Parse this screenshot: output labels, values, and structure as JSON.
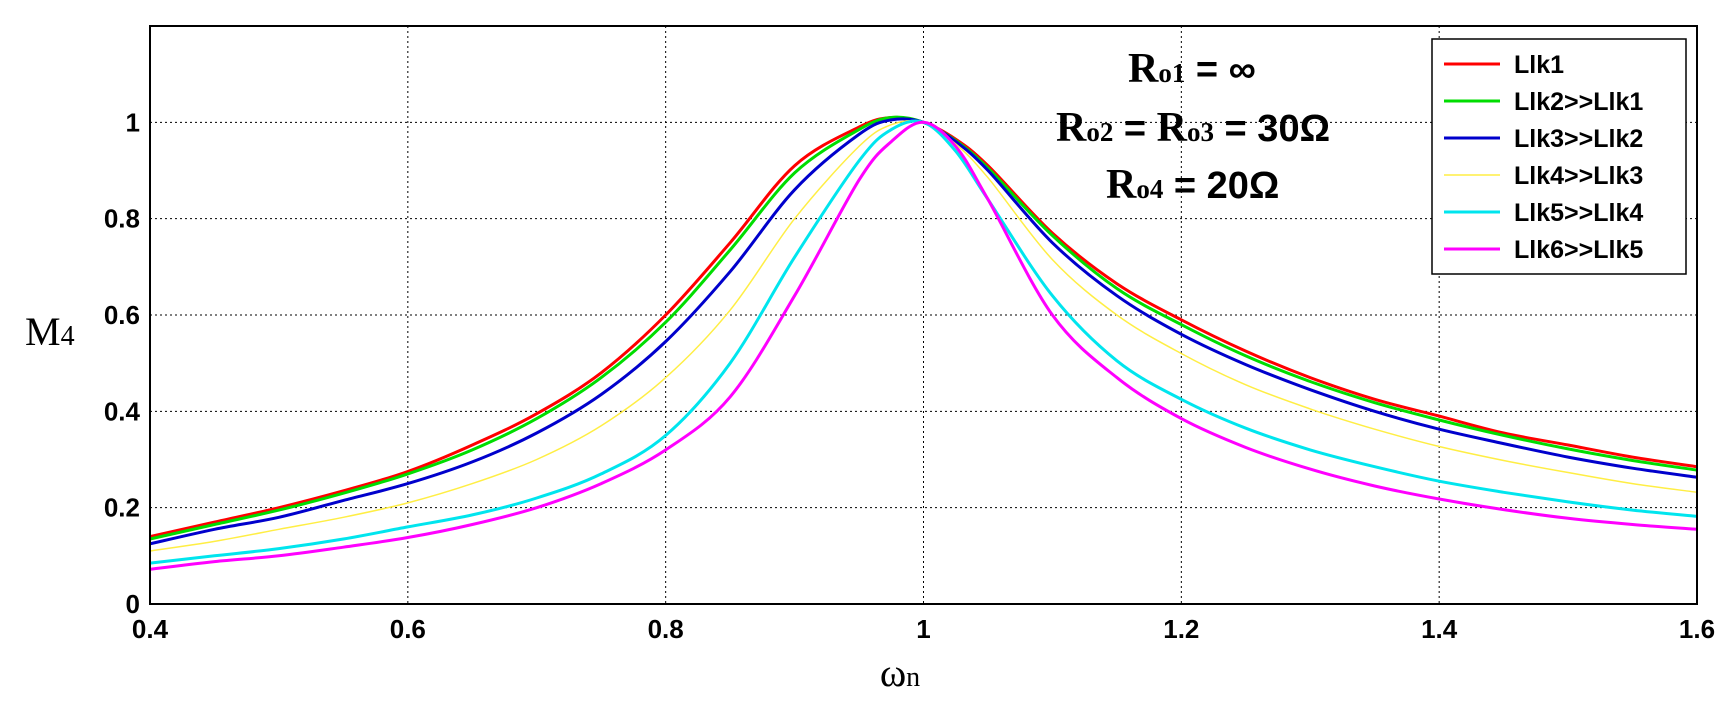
{
  "chart_data": {
    "type": "line",
    "title": "",
    "xlabel": {
      "main": "ω",
      "sub": "n"
    },
    "ylabel": {
      "main": "M",
      "sub": "4"
    },
    "xlim": [
      0.4,
      1.6
    ],
    "ylim": [
      0,
      1.2
    ],
    "xticks": [
      0.4,
      0.6,
      0.8,
      1.0,
      1.2,
      1.4,
      1.6
    ],
    "xtick_labels": [
      "0.4",
      "0.6",
      "0.8",
      "1",
      "1.2",
      "1.4",
      "1.6"
    ],
    "yticks": [
      0,
      0.2,
      0.4,
      0.6,
      0.8,
      1.0
    ],
    "ytick_labels": [
      "0",
      "0.2",
      "0.4",
      "0.6",
      "0.8",
      "1"
    ],
    "grid": true,
    "grid_style": "dotted",
    "legend_position": "top-right",
    "x": [
      0.4,
      0.45,
      0.5,
      0.55,
      0.6,
      0.65,
      0.7,
      0.75,
      0.8,
      0.85,
      0.9,
      0.95,
      0.975,
      1.0,
      1.025,
      1.05,
      1.1,
      1.15,
      1.2,
      1.25,
      1.3,
      1.35,
      1.4,
      1.45,
      1.5,
      1.55,
      1.6
    ],
    "series": [
      {
        "name": "Llk1",
        "color": "#ff0000",
        "values": [
          0.14,
          0.17,
          0.2,
          0.235,
          0.275,
          0.33,
          0.395,
          0.48,
          0.6,
          0.75,
          0.91,
          0.99,
          1.01,
          1.0,
          0.965,
          0.91,
          0.77,
          0.665,
          0.59,
          0.525,
          0.47,
          0.425,
          0.39,
          0.355,
          0.33,
          0.305,
          0.285
        ]
      },
      {
        "name": "Llk2>>Llk1",
        "color": "#00dd00",
        "values": [
          0.135,
          0.165,
          0.195,
          0.23,
          0.27,
          0.32,
          0.385,
          0.47,
          0.585,
          0.735,
          0.895,
          0.985,
          1.01,
          1.0,
          0.962,
          0.905,
          0.765,
          0.655,
          0.58,
          0.515,
          0.462,
          0.418,
          0.382,
          0.35,
          0.322,
          0.298,
          0.278
        ]
      },
      {
        "name": "Llk3>>Llk2",
        "color": "#0000cc",
        "values": [
          0.125,
          0.155,
          0.18,
          0.215,
          0.25,
          0.295,
          0.355,
          0.435,
          0.545,
          0.69,
          0.86,
          0.975,
          1.005,
          1.0,
          0.96,
          0.9,
          0.75,
          0.64,
          0.56,
          0.497,
          0.445,
          0.4,
          0.363,
          0.333,
          0.305,
          0.282,
          0.263
        ]
      },
      {
        "name": "Llk4>>Llk3",
        "color": "#ffee44",
        "values": [
          0.11,
          0.13,
          0.155,
          0.18,
          0.21,
          0.25,
          0.3,
          0.37,
          0.47,
          0.61,
          0.8,
          0.95,
          0.995,
          1.0,
          0.955,
          0.885,
          0.715,
          0.6,
          0.52,
          0.455,
          0.405,
          0.363,
          0.327,
          0.298,
          0.273,
          0.25,
          0.232
        ]
      },
      {
        "name": "Llk5>>Llk4",
        "color": "#00e5ee",
        "values": [
          0.085,
          0.1,
          0.115,
          0.135,
          0.16,
          0.185,
          0.22,
          0.27,
          0.35,
          0.5,
          0.72,
          0.92,
          0.985,
          1.0,
          0.94,
          0.84,
          0.64,
          0.505,
          0.425,
          0.365,
          0.32,
          0.285,
          0.255,
          0.232,
          0.212,
          0.195,
          0.182
        ]
      },
      {
        "name": "Llk6>>Llk5",
        "color": "#ff00ff",
        "values": [
          0.072,
          0.088,
          0.1,
          0.118,
          0.138,
          0.165,
          0.2,
          0.25,
          0.32,
          0.43,
          0.64,
          0.88,
          0.96,
          1.0,
          0.95,
          0.84,
          0.6,
          0.47,
          0.385,
          0.325,
          0.28,
          0.245,
          0.218,
          0.196,
          0.178,
          0.165,
          0.155
        ]
      }
    ],
    "annotations": [
      {
        "main": "R",
        "sub": "o1",
        "rest": " = ∞"
      },
      {
        "main": "R",
        "sub": "o2",
        "rest": " = ",
        "main2": "R",
        "sub2": "o3",
        "rest2": " = 30Ω"
      },
      {
        "main": "R",
        "sub": "o4",
        "rest": " = 20Ω"
      }
    ]
  }
}
